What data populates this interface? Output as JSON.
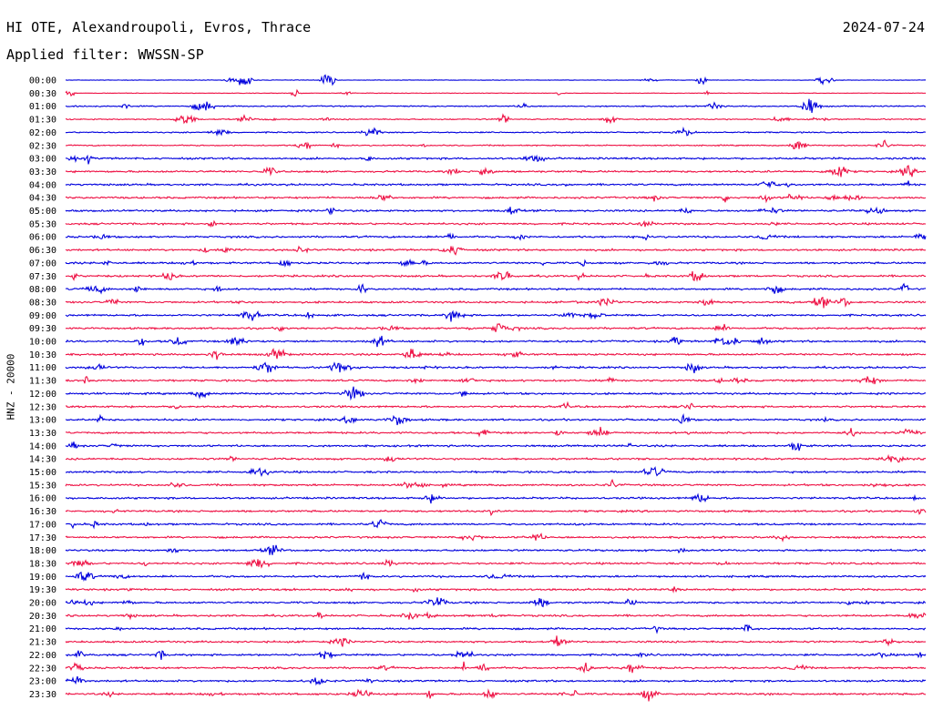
{
  "header": {
    "station": "HI OTE, Alexandroupoli, Evros, Thrace",
    "date": "2024-07-24",
    "filter": "Applied filter: WWSSN-SP"
  },
  "colors": {
    "trace_a": "#0000dd",
    "trace_b": "#ee1144",
    "text": "#000000",
    "background": "#ffffff"
  },
  "chart_data": {
    "type": "line",
    "title": "HI OTE, Alexandroupoli, Evros, Thrace",
    "ylabel": "HNZ - 20000",
    "xlabel": "",
    "filter": "WWSSN-SP",
    "grid": false,
    "row_interval_minutes": 30,
    "row_labels": [
      "00:00",
      "00:30",
      "01:00",
      "01:30",
      "02:00",
      "02:30",
      "03:00",
      "03:30",
      "04:00",
      "04:30",
      "05:00",
      "05:30",
      "06:00",
      "06:30",
      "07:00",
      "07:30",
      "08:00",
      "08:30",
      "09:00",
      "09:30",
      "10:00",
      "10:30",
      "11:00",
      "11:30",
      "12:00",
      "12:30",
      "13:00",
      "13:30",
      "14:00",
      "14:30",
      "15:00",
      "15:30",
      "16:00",
      "16:30",
      "17:00",
      "17:30",
      "18:00",
      "18:30",
      "19:00",
      "19:30",
      "20:00",
      "20:30",
      "21:00",
      "21:30",
      "22:00",
      "22:30",
      "23:00",
      "23:30"
    ],
    "series_colors_alternating": [
      "#0000dd",
      "#ee1144"
    ]
  }
}
